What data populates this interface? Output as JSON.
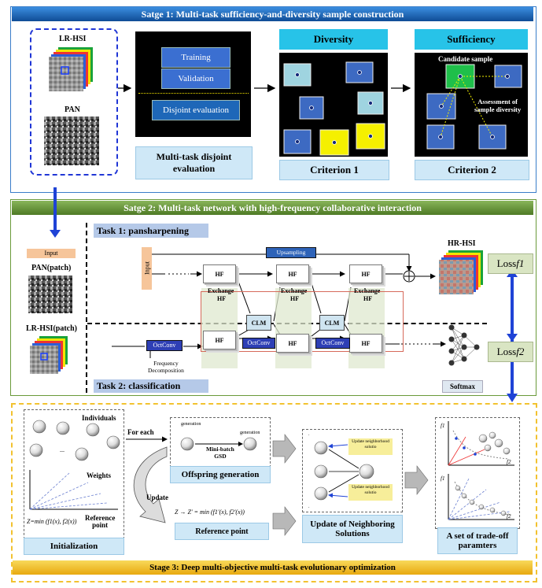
{
  "stage1": {
    "title": "Satge 1: Multi-task sufficiency-and-diversity sample construction",
    "lr_hsi": "LR-HSI",
    "pan": "PAN",
    "training": "Training",
    "validation": "Validation",
    "disjoint_eval": "Disjoint evaluation",
    "disjoint_caption_1": "Multi-task disjoint",
    "disjoint_caption_2": "evaluation",
    "diversity": "Diversity",
    "sufficiency": "Sufficiency",
    "criterion1": "Criterion 1",
    "criterion2": "Criterion 2",
    "candidate": "Candidate sample",
    "assessment_1": "Assessment of",
    "assessment_2": "sample diversity"
  },
  "stage2": {
    "title": "Satge 2:  Multi-task network with high-frequency collaborative interaction",
    "task1": "Task 1: pansharpening",
    "task2": "Task 2: classification",
    "input_tag": "Input",
    "pan_patch": "PAN(patch)",
    "lr_hsi_patch": "LR-HSI(patch)",
    "upsampling": "Upsampling",
    "input_vertical": "Input",
    "hf": "HF",
    "exchange": "Exchange",
    "clm": "CLM",
    "octconv": "OctConv",
    "freq_decomp_1": "Frequency",
    "freq_decomp_2": "Decomposition",
    "hr_hsi": "HR-HSI",
    "loss1": "Loss",
    "loss1_sub": "f1",
    "loss2": "Loss",
    "loss2_sub": "f2",
    "softmax": "Softmax"
  },
  "stage3": {
    "title": "Stage 3: Deep multi-objective multi-task evolutionary optimization",
    "individuals": "Individuals",
    "weights": "Weights",
    "reference_point_1": "Reference",
    "reference_point_2": "point",
    "z_formula": "Z=min (f1(x), f2(x))",
    "initialization": "Initialization",
    "for_each": "For each",
    "mini_batch_1": "Mini-batch",
    "mini_batch_2": "GSD",
    "gen_label": "generation",
    "offspring": "Offspring generation",
    "update": "Update",
    "z_update": "Z → Z' = min (f1'(x), f2'(x))",
    "reference_point": "Reference point",
    "update_neighbor_1": "Update neighborhood",
    "update_neighbor_2": "solutio",
    "update_neighboring": "Update of Neighboring",
    "solutions": "Solutions",
    "tradeoff_1": "A set of trade-off",
    "tradeoff_2": "paramters"
  },
  "colors": {
    "stage1_title_bg": "#1a6bbf",
    "stage2_title_bg": "#6a9a3a",
    "stage3_title_bg": "#f2c230",
    "light_blue": "#cfe8f7",
    "blue_arrow": "#1f43d6",
    "task_label_bg": "#b5c9e8",
    "loss_bg": "#d9e5c3",
    "cyan_header": "#27c3e8"
  }
}
